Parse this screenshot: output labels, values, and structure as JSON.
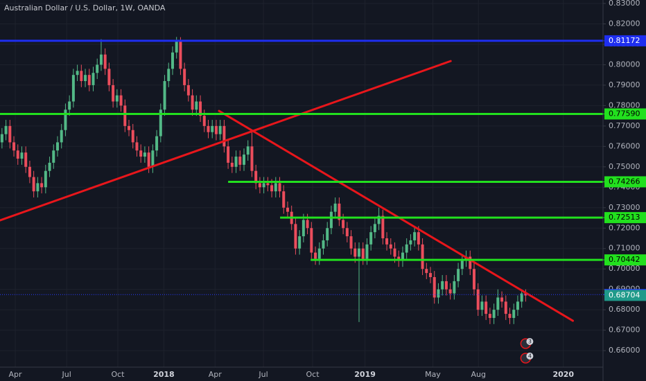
{
  "chart_data": {
    "type": "candlestick",
    "title": "Australian Dollar / U.S. Dollar, 1W, OANDA",
    "x": [
      0,
      1,
      2,
      3,
      4,
      5,
      6,
      7,
      8,
      9,
      10,
      11,
      12,
      13,
      14,
      15,
      16,
      17,
      18,
      19,
      20,
      21,
      22,
      23,
      24,
      25,
      26,
      27,
      28,
      29,
      30,
      31,
      32,
      33,
      34,
      35,
      36,
      37,
      38,
      39,
      40,
      41,
      42,
      43,
      44,
      45,
      46,
      47,
      48,
      49,
      50,
      51,
      52,
      53,
      54,
      55,
      56,
      57,
      58,
      59,
      60,
      61,
      62,
      63,
      64,
      65,
      66,
      67,
      68,
      69,
      70,
      71,
      72,
      73,
      74,
      75,
      76,
      77,
      78,
      79,
      80,
      81,
      82,
      83,
      84,
      85,
      86,
      87,
      88,
      89,
      90,
      91,
      92,
      93,
      94,
      95,
      96,
      97,
      98,
      99,
      100,
      101,
      102,
      103,
      104,
      105,
      106,
      107,
      108,
      109,
      110,
      111,
      112,
      113,
      114,
      115,
      116,
      117,
      118,
      119,
      120,
      121,
      122,
      123,
      124,
      125,
      126,
      127,
      128,
      129,
      130,
      131,
      132
    ],
    "open": [
      0.762,
      0.766,
      0.77,
      0.762,
      0.758,
      0.754,
      0.757,
      0.75,
      0.745,
      0.738,
      0.742,
      0.74,
      0.748,
      0.752,
      0.758,
      0.762,
      0.768,
      0.778,
      0.782,
      0.795,
      0.797,
      0.792,
      0.795,
      0.79,
      0.796,
      0.8,
      0.805,
      0.798,
      0.79,
      0.782,
      0.785,
      0.78,
      0.77,
      0.768,
      0.762,
      0.758,
      0.755,
      0.757,
      0.75,
      0.758,
      0.765,
      0.778,
      0.792,
      0.798,
      0.806,
      0.812,
      0.798,
      0.79,
      0.785,
      0.778,
      0.782,
      0.775,
      0.77,
      0.767,
      0.77,
      0.766,
      0.77,
      0.76,
      0.752,
      0.75,
      0.755,
      0.751,
      0.756,
      0.76,
      0.748,
      0.742,
      0.74,
      0.742,
      0.741,
      0.738,
      0.742,
      0.738,
      0.73,
      0.728,
      0.722,
      0.71,
      0.716,
      0.724,
      0.72,
      0.708,
      0.705,
      0.71,
      0.714,
      0.72,
      0.728,
      0.732,
      0.724,
      0.72,
      0.716,
      0.71,
      0.706,
      0.71,
      0.705,
      0.712,
      0.718,
      0.722,
      0.726,
      0.715,
      0.712,
      0.71,
      0.706,
      0.704,
      0.708,
      0.712,
      0.714,
      0.718,
      0.712,
      0.7,
      0.698,
      0.696,
      0.686,
      0.69,
      0.694,
      0.69,
      0.688,
      0.694,
      0.7,
      0.704,
      0.706,
      0.7,
      0.69,
      0.68,
      0.684,
      0.678,
      0.676,
      0.68,
      0.686,
      0.684,
      0.678,
      0.676,
      0.68,
      0.684,
      0.688
    ],
    "high": [
      0.769,
      0.773,
      0.773,
      0.765,
      0.761,
      0.76,
      0.76,
      0.753,
      0.748,
      0.745,
      0.745,
      0.751,
      0.755,
      0.761,
      0.765,
      0.771,
      0.781,
      0.785,
      0.798,
      0.8,
      0.8,
      0.798,
      0.798,
      0.799,
      0.803,
      0.8125,
      0.808,
      0.801,
      0.793,
      0.788,
      0.788,
      0.783,
      0.773,
      0.771,
      0.765,
      0.761,
      0.76,
      0.76,
      0.761,
      0.768,
      0.781,
      0.795,
      0.801,
      0.809,
      0.8136,
      0.8135,
      0.801,
      0.793,
      0.788,
      0.785,
      0.785,
      0.778,
      0.773,
      0.773,
      0.773,
      0.773,
      0.773,
      0.763,
      0.755,
      0.758,
      0.758,
      0.759,
      0.763,
      0.768,
      0.751,
      0.745,
      0.745,
      0.745,
      0.744,
      0.745,
      0.745,
      0.741,
      0.733,
      0.731,
      0.725,
      0.719,
      0.727,
      0.727,
      0.723,
      0.711,
      0.713,
      0.717,
      0.723,
      0.731,
      0.735,
      0.735,
      0.727,
      0.723,
      0.719,
      0.713,
      0.713,
      0.713,
      0.715,
      0.721,
      0.725,
      0.73,
      0.729,
      0.718,
      0.715,
      0.713,
      0.709,
      0.711,
      0.715,
      0.717,
      0.721,
      0.721,
      0.715,
      0.703,
      0.701,
      0.699,
      0.693,
      0.697,
      0.697,
      0.693,
      0.697,
      0.703,
      0.707,
      0.709,
      0.709,
      0.703,
      0.693,
      0.687,
      0.687,
      0.681,
      0.683,
      0.69,
      0.689,
      0.687,
      0.681,
      0.683,
      0.687,
      0.69,
      0.69
    ],
    "low": [
      0.759,
      0.763,
      0.759,
      0.755,
      0.751,
      0.751,
      0.747,
      0.742,
      0.735,
      0.735,
      0.737,
      0.737,
      0.745,
      0.749,
      0.755,
      0.759,
      0.765,
      0.775,
      0.779,
      0.792,
      0.789,
      0.789,
      0.787,
      0.787,
      0.793,
      0.797,
      0.795,
      0.787,
      0.779,
      0.779,
      0.777,
      0.767,
      0.765,
      0.759,
      0.755,
      0.752,
      0.752,
      0.747,
      0.747,
      0.755,
      0.762,
      0.775,
      0.789,
      0.795,
      0.803,
      0.795,
      0.787,
      0.782,
      0.775,
      0.775,
      0.772,
      0.767,
      0.764,
      0.764,
      0.763,
      0.763,
      0.757,
      0.749,
      0.747,
      0.747,
      0.748,
      0.748,
      0.753,
      0.745,
      0.739,
      0.737,
      0.737,
      0.738,
      0.735,
      0.735,
      0.735,
      0.727,
      0.725,
      0.719,
      0.707,
      0.707,
      0.713,
      0.717,
      0.705,
      0.702,
      0.702,
      0.707,
      0.711,
      0.717,
      0.725,
      0.721,
      0.717,
      0.713,
      0.707,
      0.703,
      0.674,
      0.702,
      0.702,
      0.709,
      0.715,
      0.719,
      0.712,
      0.709,
      0.707,
      0.703,
      0.701,
      0.701,
      0.705,
      0.709,
      0.711,
      0.709,
      0.697,
      0.695,
      0.693,
      0.683,
      0.683,
      0.687,
      0.687,
      0.685,
      0.685,
      0.691,
      0.697,
      0.701,
      0.697,
      0.687,
      0.677,
      0.677,
      0.675,
      0.673,
      0.673,
      0.677,
      0.681,
      0.675,
      0.673,
      0.673,
      0.677,
      0.681,
      0.684
    ],
    "close": [
      0.766,
      0.77,
      0.762,
      0.758,
      0.754,
      0.757,
      0.75,
      0.745,
      0.738,
      0.742,
      0.74,
      0.748,
      0.752,
      0.758,
      0.762,
      0.768,
      0.778,
      0.782,
      0.795,
      0.797,
      0.792,
      0.795,
      0.79,
      0.796,
      0.8,
      0.805,
      0.798,
      0.79,
      0.782,
      0.785,
      0.78,
      0.77,
      0.768,
      0.762,
      0.758,
      0.755,
      0.757,
      0.75,
      0.758,
      0.765,
      0.778,
      0.792,
      0.798,
      0.806,
      0.812,
      0.798,
      0.79,
      0.785,
      0.778,
      0.782,
      0.775,
      0.77,
      0.767,
      0.77,
      0.766,
      0.77,
      0.76,
      0.752,
      0.75,
      0.755,
      0.751,
      0.756,
      0.76,
      0.748,
      0.742,
      0.74,
      0.742,
      0.741,
      0.738,
      0.742,
      0.738,
      0.73,
      0.728,
      0.722,
      0.71,
      0.716,
      0.724,
      0.72,
      0.708,
      0.705,
      0.71,
      0.714,
      0.72,
      0.728,
      0.732,
      0.724,
      0.72,
      0.716,
      0.71,
      0.706,
      0.71,
      0.705,
      0.712,
      0.718,
      0.722,
      0.726,
      0.715,
      0.712,
      0.71,
      0.706,
      0.704,
      0.708,
      0.712,
      0.714,
      0.718,
      0.712,
      0.7,
      0.698,
      0.696,
      0.686,
      0.69,
      0.694,
      0.69,
      0.688,
      0.694,
      0.7,
      0.704,
      0.706,
      0.7,
      0.69,
      0.68,
      0.684,
      0.678,
      0.676,
      0.68,
      0.686,
      0.684,
      0.678,
      0.676,
      0.68,
      0.684,
      0.688,
      0.687
    ],
    "up_color": "#53b987",
    "down_color": "#eb4d5c",
    "xlim": [
      -0.5,
      151.5
    ],
    "xticks": [
      {
        "value": 3.35,
        "label": "Apr"
      },
      {
        "value": 16.3,
        "label": "Jul"
      },
      {
        "value": 29.2,
        "label": "Oct"
      },
      {
        "value": 40.8,
        "label": "2018"
      },
      {
        "value": 53.7,
        "label": "Apr"
      },
      {
        "value": 65.9,
        "label": "Jul"
      },
      {
        "value": 78.3,
        "label": "Oct"
      },
      {
        "value": 91.5,
        "label": "2019"
      },
      {
        "value": 108.6,
        "label": "May"
      },
      {
        "value": 120.1,
        "label": "Aug"
      },
      {
        "value": 141.5,
        "label": "2020"
      }
    ],
    "ylim": [
      0.6519,
      0.8317
    ],
    "yticks": [
      {
        "value": 0.66,
        "label": "0.66000"
      },
      {
        "value": 0.67,
        "label": "0.67000"
      },
      {
        "value": 0.68,
        "label": "0.68000"
      },
      {
        "value": 0.69,
        "label": "0.69000"
      },
      {
        "value": 0.7,
        "label": "0.70000"
      },
      {
        "value": 0.71,
        "label": "0.71000"
      },
      {
        "value": 0.72,
        "label": "0.72000"
      },
      {
        "value": 0.73,
        "label": "0.73000"
      },
      {
        "value": 0.74,
        "label": "0.74000"
      },
      {
        "value": 0.75,
        "label": "0.75000"
      },
      {
        "value": 0.76,
        "label": "0.76000"
      },
      {
        "value": 0.77,
        "label": "0.77000"
      },
      {
        "value": 0.78,
        "label": "0.78000"
      },
      {
        "value": 0.79,
        "label": "0.79000"
      },
      {
        "value": 0.8,
        "label": "0.80000"
      },
      {
        "value": 0.81,
        "label": "0.81000"
      },
      {
        "value": 0.82,
        "label": "0.82000"
      },
      {
        "value": 0.83,
        "label": "0.83000"
      }
    ],
    "grid": true,
    "levels": [
      {
        "value": 0.81172,
        "color": "#1e2ef0",
        "x_start": -0.5,
        "style": "solid"
      },
      {
        "value": {
          "value": 0.7759,
          "label": "0.77590"
        },
        "color": "#22e01e",
        "x_start": -0.5,
        "style": "solid"
      },
      {
        "value": 0.74266,
        "color": "#22e01e",
        "x_start": 57.0,
        "style": "solid"
      },
      {
        "value": 0.72513,
        "color": "#22e01e",
        "x_start": 70.1,
        "style": "solid"
      },
      {
        "value": 0.70442,
        "color": "#22e01e",
        "x_start": 77.8,
        "style": "solid"
      },
      {
        "value": 0.68745,
        "color": "#2a3cff",
        "x_start": -0.5,
        "style": "dotted"
      }
    ],
    "current_price": {
      "value": 0.68704,
      "color": "#1f9a8a"
    },
    "trend_lines": [
      {
        "x": [
          -0.5,
          113.1
        ],
        "y": [
          0.7238,
          0.8018
        ],
        "color": "#e8161b"
      },
      {
        "x": [
          54.7,
          143.9
        ],
        "y": [
          0.7774,
          0.6746
        ],
        "color": "#e8161b"
      }
    ],
    "event_badges": [
      "3",
      "4"
    ]
  }
}
